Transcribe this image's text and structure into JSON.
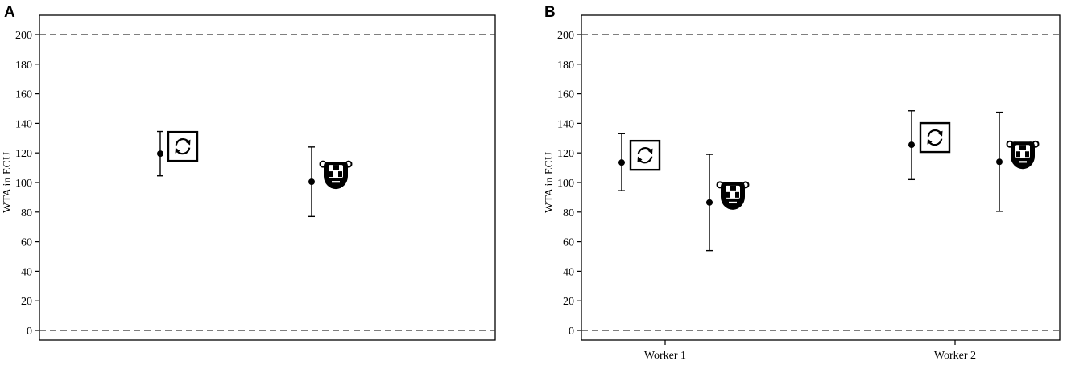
{
  "chart_data": [
    {
      "panel": "A",
      "type": "scatter",
      "ylabel": "WTA in ECU",
      "xlabel": "",
      "categories": [],
      "ylim": [
        0,
        200
      ],
      "yticks": [
        0,
        20,
        40,
        60,
        80,
        100,
        120,
        140,
        160,
        180,
        200
      ],
      "reference_lines": [
        0,
        200
      ],
      "grid": false,
      "points": [
        {
          "icon": "refresh-icon",
          "y": 119.5,
          "lower": 104.5,
          "upper": 134.5
        },
        {
          "icon": "robot-icon",
          "y": 100.5,
          "lower": 77,
          "upper": 124
        }
      ]
    },
    {
      "panel": "B",
      "type": "scatter",
      "ylabel": "WTA in ECU",
      "xlabel": "",
      "categories": [
        "Worker 1",
        "Worker 2"
      ],
      "ylim": [
        0,
        200
      ],
      "yticks": [
        0,
        20,
        40,
        60,
        80,
        100,
        120,
        140,
        160,
        180,
        200
      ],
      "reference_lines": [
        0,
        200
      ],
      "grid": false,
      "points": [
        {
          "category": "Worker 1",
          "icon": "refresh-icon",
          "y": 113.5,
          "lower": 94.5,
          "upper": 133
        },
        {
          "category": "Worker 1",
          "icon": "robot-icon",
          "y": 86.5,
          "lower": 54,
          "upper": 119
        },
        {
          "category": "Worker 2",
          "icon": "refresh-icon",
          "y": 125.5,
          "lower": 102,
          "upper": 148.5
        },
        {
          "category": "Worker 2",
          "icon": "robot-icon",
          "y": 114,
          "lower": 80.5,
          "upper": 147.5
        }
      ]
    }
  ]
}
